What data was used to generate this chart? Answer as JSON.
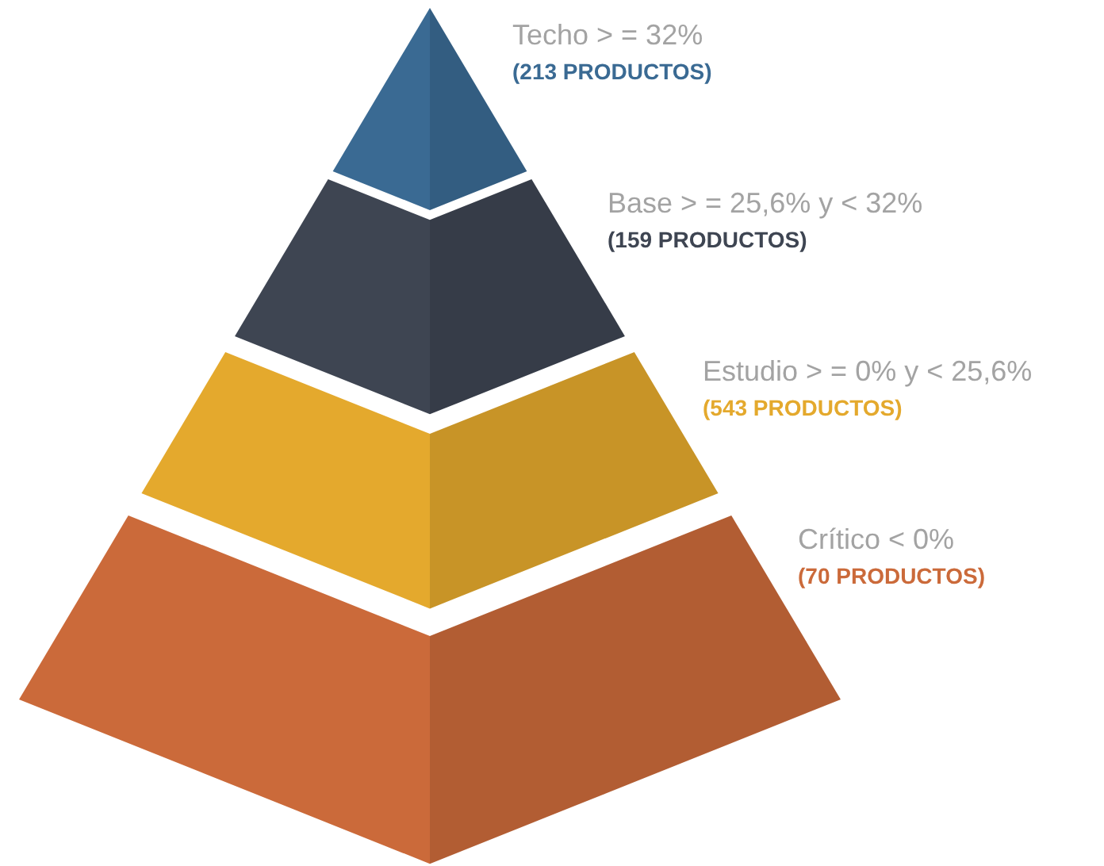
{
  "chart_data": {
    "type": "other",
    "categories": [
      "Techo > = 32%",
      "Base > = 25,6% y < 32%",
      "Estudio > = 0% y < 25,6%",
      "Crítico  < 0%"
    ],
    "values": [
      213,
      159,
      543,
      70
    ],
    "value_labels": [
      "(213 PRODUCTOS)",
      "(159 PRODUCTOS)",
      "(543 PRODUCTOS)",
      "(70 PRODUCTOS)"
    ],
    "colors": [
      "#3a6a93",
      "#3e4552",
      "#e4a92d",
      "#cb6a3a"
    ]
  }
}
